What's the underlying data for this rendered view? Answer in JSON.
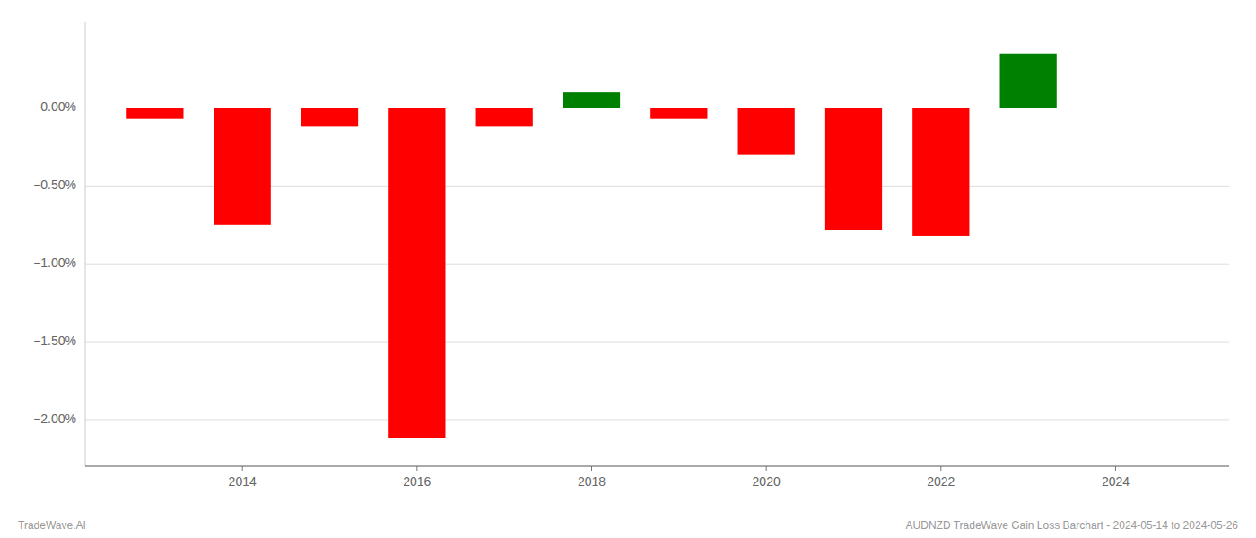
{
  "chart_data": {
    "type": "bar",
    "x": [
      2013,
      2014,
      2015,
      2016,
      2017,
      2018,
      2019,
      2020,
      2021,
      2022,
      2023
    ],
    "values": [
      -0.07,
      -0.75,
      -0.12,
      -2.12,
      -0.12,
      0.1,
      -0.07,
      -0.3,
      -0.78,
      -0.82,
      0.35
    ],
    "colors": [
      "#ff0000",
      "#ff0000",
      "#ff0000",
      "#ff0000",
      "#ff0000",
      "#008000",
      "#ff0000",
      "#ff0000",
      "#ff0000",
      "#ff0000",
      "#008000"
    ],
    "xlim": [
      2012.2,
      2025.3
    ],
    "xticks": [
      2014,
      2016,
      2018,
      2020,
      2022,
      2024
    ],
    "ylim": [
      -2.3,
      0.55
    ],
    "yticks": [
      {
        "value": 0.0,
        "label": "0.00%"
      },
      {
        "value": -0.5,
        "label": "−0.50%"
      },
      {
        "value": -1.0,
        "label": "−1.00%"
      },
      {
        "value": -1.5,
        "label": "−1.50%"
      },
      {
        "value": -2.0,
        "label": "−2.00%"
      }
    ],
    "grid": true,
    "annotations": [
      "TradeWave.AI",
      "AUDNZD TradeWave Gain Loss Barchart - 2024-05-14 to 2024-05-26"
    ]
  }
}
